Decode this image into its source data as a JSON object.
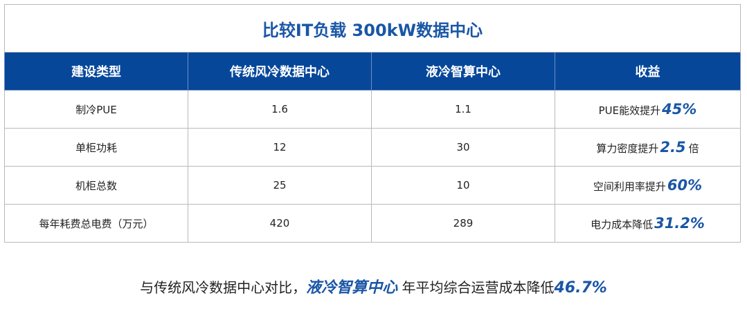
{
  "table": {
    "title": "比较IT负载 300kW数据中心",
    "headers": [
      "建设类型",
      "传统风冷数据中心",
      "液冷智算中心",
      "收益"
    ],
    "rows": [
      {
        "type": "制冷PUE",
        "traditional": "1.6",
        "liquid": "1.1",
        "benefit_text": "PUE能效提升",
        "benefit_value": "45%",
        "benefit_suffix": ""
      },
      {
        "type": "单柜功耗",
        "traditional": "12",
        "liquid": "30",
        "benefit_text": "算力密度提升",
        "benefit_value": "2.5",
        "benefit_suffix": "倍"
      },
      {
        "type": "机柜总数",
        "traditional": "25",
        "liquid": "10",
        "benefit_text": "空间利用率提升",
        "benefit_value": "60%",
        "benefit_suffix": ""
      },
      {
        "type": "每年耗费总电费（万元）",
        "traditional": "420",
        "liquid": "289",
        "benefit_text": "电力成本降低",
        "benefit_value": "31.2%",
        "benefit_suffix": ""
      }
    ]
  },
  "footer": {
    "prefix": "与传统风冷数据中心对比，",
    "highlight": "液冷智算中心",
    "middle": " 年平均综合运营成本降低",
    "value": "46.7%"
  },
  "colors": {
    "header_bg": "#06479a",
    "accent": "#1a56a6",
    "border": "#b9b9b9"
  }
}
